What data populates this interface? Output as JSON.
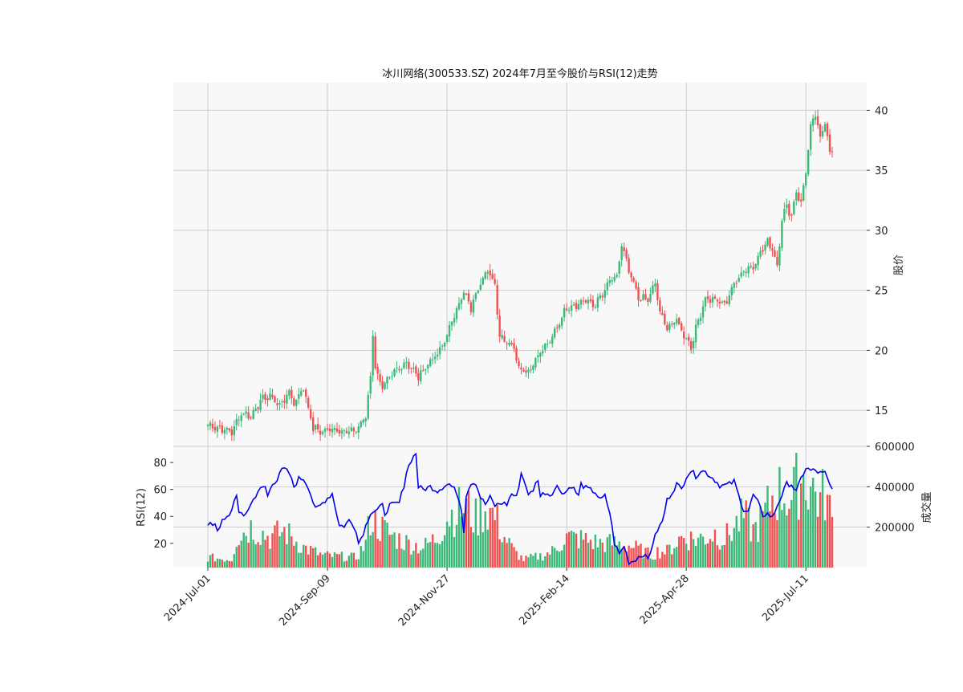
{
  "chart_data": {
    "type": "candlestick",
    "title": "冰川网络(300533.SZ) 2024年7月至今股价与RSI(12)走势",
    "price_axis": {
      "label": "股价",
      "ticks": [
        15,
        20,
        25,
        30,
        35,
        40
      ],
      "range": [
        12,
        42.3
      ]
    },
    "volume_axis": {
      "label": "成交量",
      "ticks": [
        200000,
        400000,
        600000
      ],
      "range": [
        0,
        600000
      ]
    },
    "rsi_axis": {
      "label": "RSI(12)",
      "ticks": [
        20,
        40,
        60,
        80
      ],
      "range": [
        2,
        92
      ]
    },
    "date_ticks": [
      "2024-Jul-01",
      "2024-Sep-09",
      "2024-Nov-27",
      "2025-Feb-14",
      "2025-Apr-28",
      "2025-Jul-11"
    ],
    "grid": true,
    "colors": {
      "up": "#3cb878",
      "down": "#f05050",
      "rsi": "#0000ee",
      "panel_bg": "#f8f8f8",
      "grid": "#cccccc"
    },
    "close_anchors": [
      [
        0,
        13.8
      ],
      [
        5,
        13.5
      ],
      [
        10,
        13.2
      ],
      [
        14,
        14.8
      ],
      [
        18,
        14.5
      ],
      [
        22,
        15.8
      ],
      [
        26,
        16.2
      ],
      [
        30,
        15.4
      ],
      [
        34,
        16.5
      ],
      [
        36,
        15.6
      ],
      [
        40,
        16.9
      ],
      [
        44,
        13.5
      ],
      [
        48,
        13.2
      ],
      [
        52,
        13.5
      ],
      [
        56,
        13.3
      ],
      [
        60,
        13.2
      ],
      [
        63,
        13.6
      ],
      [
        66,
        14.5
      ],
      [
        68,
        17.8
      ],
      [
        69,
        21.5
      ],
      [
        70,
        18.5
      ],
      [
        73,
        16.9
      ],
      [
        78,
        18.2
      ],
      [
        83,
        19.0
      ],
      [
        88,
        17.8
      ],
      [
        92,
        18.9
      ],
      [
        97,
        19.9
      ],
      [
        101,
        21.8
      ],
      [
        104,
        23.5
      ],
      [
        107,
        24.8
      ],
      [
        110,
        23.5
      ],
      [
        114,
        25.8
      ],
      [
        117,
        26.6
      ],
      [
        120,
        25.5
      ],
      [
        122,
        21.2
      ],
      [
        125,
        20.8
      ],
      [
        128,
        20.2
      ],
      [
        130,
        18.6
      ],
      [
        134,
        18.2
      ],
      [
        137,
        19.3
      ],
      [
        140,
        20.1
      ],
      [
        143,
        20.7
      ],
      [
        147,
        22.4
      ],
      [
        150,
        23.6
      ],
      [
        154,
        23.8
      ],
      [
        158,
        24.2
      ],
      [
        161,
        23.7
      ],
      [
        165,
        24.6
      ],
      [
        168,
        25.8
      ],
      [
        171,
        26.1
      ],
      [
        173,
        28.8
      ],
      [
        176,
        26.6
      ],
      [
        180,
        24.4
      ],
      [
        184,
        24.2
      ],
      [
        187,
        25.6
      ],
      [
        189,
        23.1
      ],
      [
        192,
        21.9
      ],
      [
        196,
        22.5
      ],
      [
        199,
        21.3
      ],
      [
        202,
        20.3
      ],
      [
        205,
        22.5
      ],
      [
        208,
        24.3
      ],
      [
        212,
        24.2
      ],
      [
        216,
        23.8
      ],
      [
        220,
        25.5
      ],
      [
        224,
        26.7
      ],
      [
        228,
        27.0
      ],
      [
        231,
        28.2
      ],
      [
        234,
        29.0
      ],
      [
        236,
        28.5
      ],
      [
        238,
        27.0
      ],
      [
        240,
        31.0
      ],
      [
        242,
        32.0
      ],
      [
        244,
        31.2
      ],
      [
        246,
        33.3
      ],
      [
        248,
        32.2
      ],
      [
        250,
        35.0
      ],
      [
        252,
        38.5
      ],
      [
        254,
        39.7
      ],
      [
        256,
        37.5
      ],
      [
        258,
        39.2
      ],
      [
        260,
        36.5
      ],
      [
        261,
        36.6
      ]
    ],
    "rsi_anchors": [
      [
        0,
        33
      ],
      [
        3,
        35
      ],
      [
        4,
        30
      ],
      [
        6,
        36
      ],
      [
        9,
        40
      ],
      [
        12,
        57
      ],
      [
        13,
        42
      ],
      [
        15,
        40
      ],
      [
        18,
        49
      ],
      [
        21,
        59
      ],
      [
        24,
        62
      ],
      [
        25,
        55
      ],
      [
        27,
        64
      ],
      [
        29,
        68
      ],
      [
        30,
        73
      ],
      [
        32,
        75
      ],
      [
        34,
        72
      ],
      [
        36,
        62
      ],
      [
        38,
        68
      ],
      [
        40,
        68
      ],
      [
        42,
        62
      ],
      [
        45,
        45
      ],
      [
        47,
        48
      ],
      [
        49,
        52
      ],
      [
        52,
        57
      ],
      [
        55,
        33
      ],
      [
        57,
        33
      ],
      [
        59,
        37
      ],
      [
        61,
        33
      ],
      [
        62,
        30
      ],
      [
        63,
        20
      ],
      [
        65,
        28
      ],
      [
        68,
        43
      ],
      [
        71,
        45
      ],
      [
        73,
        48
      ],
      [
        74,
        42
      ],
      [
        76,
        48
      ],
      [
        80,
        50
      ],
      [
        82,
        63
      ],
      [
        83,
        73
      ],
      [
        85,
        82
      ],
      [
        87,
        87
      ],
      [
        88,
        62
      ],
      [
        90,
        60
      ],
      [
        93,
        62
      ],
      [
        96,
        59
      ],
      [
        99,
        63
      ],
      [
        101,
        64
      ],
      [
        104,
        58
      ],
      [
        106,
        46
      ],
      [
        107,
        29
      ],
      [
        108,
        56
      ],
      [
        110,
        65
      ],
      [
        112,
        65
      ],
      [
        114,
        54
      ],
      [
        116,
        49
      ],
      [
        118,
        54
      ],
      [
        120,
        48
      ],
      [
        123,
        50
      ],
      [
        125,
        49
      ],
      [
        127,
        57
      ],
      [
        129,
        54
      ],
      [
        131,
        72
      ],
      [
        133,
        63
      ],
      [
        134,
        55
      ],
      [
        136,
        60
      ],
      [
        138,
        68
      ],
      [
        139,
        55
      ],
      [
        141,
        58
      ],
      [
        143,
        56
      ],
      [
        146,
        62
      ],
      [
        149,
        57
      ],
      [
        152,
        63
      ],
      [
        155,
        55
      ],
      [
        156,
        64
      ],
      [
        158,
        61
      ],
      [
        162,
        58
      ],
      [
        164,
        52
      ],
      [
        166,
        55
      ],
      [
        168,
        43
      ],
      [
        170,
        20
      ],
      [
        172,
        12
      ],
      [
        174,
        18
      ],
      [
        176,
        6
      ],
      [
        178,
        7
      ],
      [
        180,
        10
      ],
      [
        182,
        12
      ],
      [
        184,
        8
      ],
      [
        186,
        20
      ],
      [
        188,
        30
      ],
      [
        190,
        36
      ],
      [
        192,
        52
      ],
      [
        194,
        58
      ],
      [
        196,
        64
      ],
      [
        198,
        60
      ],
      [
        200,
        70
      ],
      [
        202,
        74
      ],
      [
        204,
        70
      ],
      [
        206,
        74
      ],
      [
        208,
        73
      ],
      [
        210,
        70
      ],
      [
        212,
        67
      ],
      [
        214,
        63
      ],
      [
        216,
        63
      ],
      [
        218,
        64
      ],
      [
        220,
        66
      ],
      [
        222,
        55
      ],
      [
        224,
        45
      ],
      [
        226,
        44
      ],
      [
        228,
        56
      ],
      [
        230,
        50
      ],
      [
        232,
        41
      ],
      [
        234,
        42
      ],
      [
        236,
        39
      ],
      [
        238,
        48
      ],
      [
        240,
        56
      ],
      [
        242,
        64
      ],
      [
        244,
        64
      ],
      [
        246,
        58
      ],
      [
        248,
        68
      ],
      [
        250,
        76
      ],
      [
        252,
        74
      ],
      [
        254,
        74
      ],
      [
        256,
        72
      ],
      [
        258,
        72
      ],
      [
        260,
        63
      ],
      [
        261,
        60
      ]
    ],
    "volume_anchors": [
      [
        0,
        50000
      ],
      [
        10,
        40000
      ],
      [
        12,
        150000
      ],
      [
        18,
        200000
      ],
      [
        26,
        150000
      ],
      [
        32,
        180000
      ],
      [
        40,
        100000
      ],
      [
        48,
        60000
      ],
      [
        56,
        55000
      ],
      [
        62,
        50000
      ],
      [
        66,
        120000
      ],
      [
        68,
        250000
      ],
      [
        72,
        200000
      ],
      [
        78,
        150000
      ],
      [
        84,
        120000
      ],
      [
        90,
        100000
      ],
      [
        96,
        150000
      ],
      [
        100,
        250000
      ],
      [
        104,
        280000
      ],
      [
        108,
        300000
      ],
      [
        112,
        240000
      ],
      [
        116,
        300000
      ],
      [
        120,
        250000
      ],
      [
        124,
        150000
      ],
      [
        128,
        80000
      ],
      [
        132,
        40000
      ],
      [
        136,
        50000
      ],
      [
        140,
        60000
      ],
      [
        144,
        80000
      ],
      [
        150,
        150000
      ],
      [
        156,
        140000
      ],
      [
        164,
        120000
      ],
      [
        170,
        120000
      ],
      [
        176,
        110000
      ],
      [
        182,
        80000
      ],
      [
        186,
        60000
      ],
      [
        188,
        80000
      ],
      [
        192,
        80000
      ],
      [
        198,
        150000
      ],
      [
        204,
        140000
      ],
      [
        208,
        150000
      ],
      [
        212,
        170000
      ],
      [
        216,
        140000
      ],
      [
        220,
        200000
      ],
      [
        224,
        250000
      ],
      [
        228,
        180000
      ],
      [
        232,
        240000
      ],
      [
        236,
        350000
      ],
      [
        240,
        380000
      ],
      [
        244,
        330000
      ],
      [
        246,
        400000
      ],
      [
        248,
        450000
      ],
      [
        252,
        410000
      ],
      [
        256,
        330000
      ],
      [
        258,
        370000
      ],
      [
        261,
        230000
      ]
    ]
  }
}
